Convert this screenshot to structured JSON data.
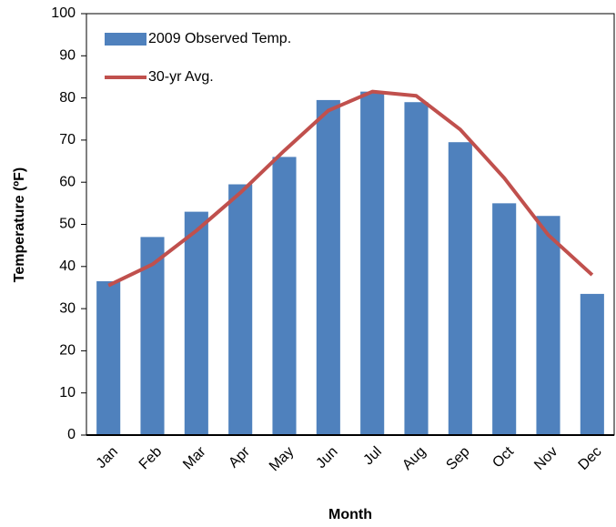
{
  "chart_data": {
    "type": "bar",
    "y_label": "Temperature (ºF)",
    "x_label": "Month",
    "categories": [
      "Jan",
      "Feb",
      "Mar",
      "Apr",
      "May",
      "Jun",
      "Jul",
      "Aug",
      "Sep",
      "Oct",
      "Nov",
      "Dec"
    ],
    "series": [
      {
        "name": "2009 Observed Temp.",
        "type": "bar",
        "color": "#4f81bd",
        "values": [
          36.5,
          47,
          53,
          59.5,
          66,
          79.5,
          81.5,
          79,
          69.5,
          55,
          52,
          33.5
        ]
      },
      {
        "name": "30-yr Avg.",
        "type": "line",
        "color": "#c0504d",
        "values": [
          35.5,
          40.5,
          48.5,
          57.5,
          67.5,
          77,
          81.5,
          80.5,
          72.5,
          61,
          47.5,
          38
        ]
      }
    ],
    "ylim": [
      0,
      100
    ],
    "yticks": [
      0,
      10,
      20,
      30,
      40,
      50,
      60,
      70,
      80,
      90,
      100
    ],
    "legend": "upper-left"
  }
}
